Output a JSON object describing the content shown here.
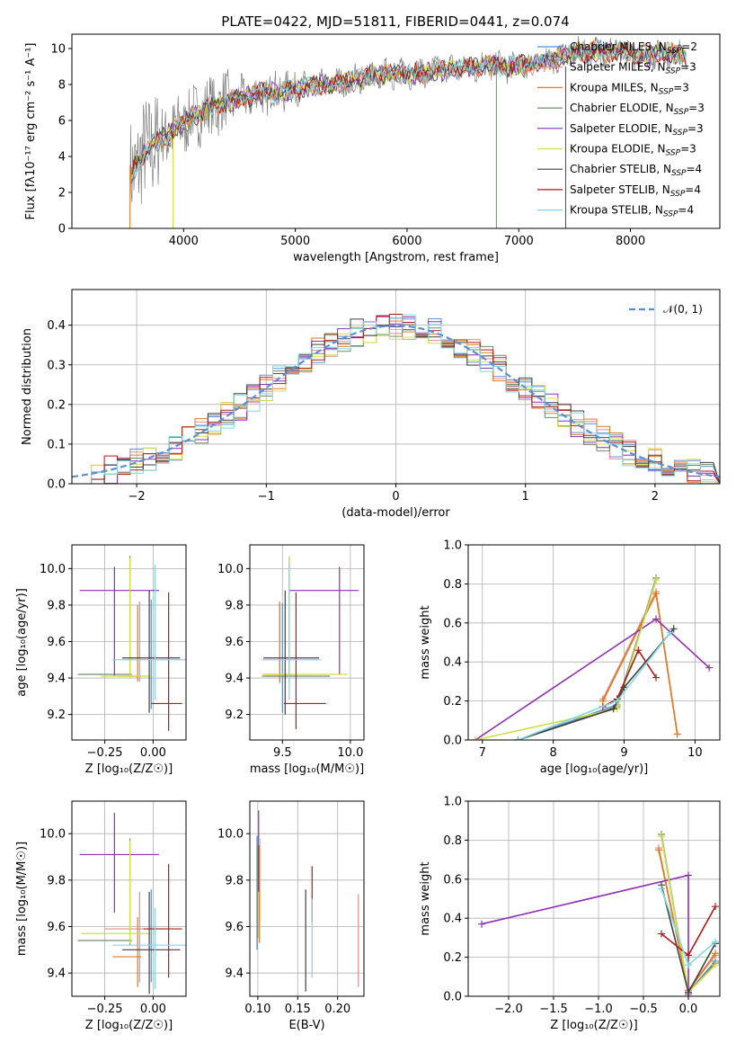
{
  "colors": {
    "chabrier_miles": "#5b8dd9",
    "salpeter_miles": "#e88a8a",
    "kroupa_miles": "#e07a20",
    "chabrier_elodie": "#6f8f6f",
    "salpeter_elodie": "#8e2fb5",
    "kroupa_elodie": "#d4dd40",
    "chabrier_stelib": "#404040",
    "salpeter_stelib": "#b01a1a",
    "kroupa_stelib": "#7fd8e0",
    "data": "#808080",
    "normal": "#5b8dd9",
    "grid": "#b0b0b0"
  },
  "chart_data": [
    {
      "type": "line",
      "title": "PLATE=0422, MJD=51811, FIBERID=0441, z=0.074",
      "xlabel": "wavelength [Angstrom, rest frame]",
      "ylabel": "Flux [fλ10⁻¹⁷ erg cm⁻² s⁻¹ A⁻¹]",
      "xlim": [
        3000,
        8800
      ],
      "ylim": [
        0,
        10.8
      ],
      "xticks": [
        "4000",
        "5000",
        "6000",
        "7000",
        "8000"
      ],
      "yticks": [
        "0",
        "2",
        "4",
        "6",
        "8",
        "10"
      ],
      "legend_position": "right",
      "series": [
        {
          "name": "Chabrier MILES, N",
          "sub": "SSP",
          "suffix": "=2"
        },
        {
          "name": "Salpeter MILES, N",
          "sub": "SSP",
          "suffix": "=3"
        },
        {
          "name": "Kroupa MILES, N",
          "sub": "SSP",
          "suffix": "=3"
        },
        {
          "name": "Chabrier ELODIE, N",
          "sub": "SSP",
          "suffix": "=3"
        },
        {
          "name": "Salpeter ELODIE, N",
          "sub": "SSP",
          "suffix": "=3"
        },
        {
          "name": "Kroupa ELODIE, N",
          "sub": "SSP",
          "suffix": "=3"
        },
        {
          "name": "Chabrier STELIB, N",
          "sub": "SSP",
          "suffix": "=4"
        },
        {
          "name": "Salpeter STELIB, N",
          "sub": "SSP",
          "suffix": "=4"
        },
        {
          "name": "Kroupa STELIB, N",
          "sub": "SSP",
          "suffix": "=4"
        }
      ],
      "continuum": {
        "x": [
          3520,
          3700,
          3900,
          4100,
          4300,
          4500,
          4700,
          4900,
          5100,
          5300,
          5500,
          5700,
          5900,
          6100,
          6300,
          6500,
          6700,
          6900,
          7100,
          7300,
          7500,
          7700,
          7900,
          8100,
          8300,
          8500
        ],
        "y": [
          3.0,
          4.6,
          5.4,
          6.3,
          6.9,
          7.2,
          7.5,
          7.6,
          7.9,
          8.0,
          8.2,
          8.5,
          8.6,
          8.6,
          8.8,
          8.9,
          9.1,
          9.0,
          9.1,
          9.4,
          9.8,
          9.8,
          9.9,
          9.6,
          9.8,
          9.6
        ]
      }
    },
    {
      "type": "line",
      "xlabel": "(data-model)/error",
      "ylabel": "Normed distribution",
      "xlim": [
        -2.5,
        2.5
      ],
      "ylim": [
        0,
        0.49
      ],
      "xticks": [
        "−2",
        "−1",
        "0",
        "1",
        "2"
      ],
      "yticks": [
        "0.0",
        "0.1",
        "0.2",
        "0.3",
        "0.4"
      ],
      "legend_position": "top-right",
      "legend": "𝒩(0, 1)",
      "hist_centers": [
        -2.4,
        -2.3,
        -2.2,
        -2.1,
        -2.0,
        -1.9,
        -1.8,
        -1.7,
        -1.6,
        -1.5,
        -1.4,
        -1.3,
        -1.2,
        -1.1,
        -1.0,
        -0.9,
        -0.8,
        -0.7,
        -0.6,
        -0.5,
        -0.4,
        -0.3,
        -0.2,
        -0.1,
        0.0,
        0.1,
        0.2,
        0.3,
        0.4,
        0.5,
        0.6,
        0.7,
        0.8,
        0.9,
        1.0,
        1.1,
        1.2,
        1.3,
        1.4,
        1.5,
        1.6,
        1.7,
        1.8,
        1.9,
        2.0,
        2.1,
        2.2,
        2.3,
        2.4
      ]
    },
    {
      "type": "scatter",
      "xlabel": "Z [log₁₀(Z/Z☉)]",
      "ylabel": "age  [log₁₀(age/yr)]",
      "xlim": [
        -0.42,
        0.17
      ],
      "ylim": [
        9.06,
        10.13
      ],
      "xticks": [
        "−0.25",
        "0.00"
      ],
      "yticks": [
        "9.2",
        "9.4",
        "9.6",
        "9.8",
        "10.0"
      ],
      "points": [
        {
          "x": -0.01,
          "y": 9.48,
          "xe": [
            -0.01,
            -0.01
          ],
          "ye": [
            9.23,
            9.83
          ]
        },
        {
          "x": -0.07,
          "y": 9.53,
          "xe": [
            -0.07,
            -0.07
          ],
          "ye": [
            9.38,
            9.82
          ]
        },
        {
          "x": -0.08,
          "y": 9.41,
          "xe": [
            -0.19,
            -0.06
          ],
          "ye": [
            9.38,
            9.8
          ]
        },
        {
          "x": -0.12,
          "y": 9.42,
          "xe": [
            -0.39,
            -0.11
          ],
          "ye": [
            9.4,
            10.07
          ]
        },
        {
          "x": -0.2,
          "y": 9.88,
          "xe": [
            -0.38,
            0.03
          ],
          "ye": [
            9.41,
            10.01
          ]
        },
        {
          "x": -0.12,
          "y": 9.41,
          "xe": [
            -0.27,
            -0.01
          ],
          "ye": [
            9.4,
            10.06
          ]
        },
        {
          "x": -0.02,
          "y": 9.51,
          "xe": [
            -0.16,
            0.14
          ],
          "ye": [
            9.21,
            9.88
          ]
        },
        {
          "x": 0.08,
          "y": 9.26,
          "xe": [
            -0.01,
            0.15
          ],
          "ye": [
            9.11,
            9.87
          ]
        },
        {
          "x": 0.01,
          "y": 9.5,
          "xe": [
            -0.21,
            0.17
          ],
          "ye": [
            9.28,
            10.02
          ]
        }
      ]
    },
    {
      "type": "scatter",
      "xlabel": "mass [log₁₀(M/M☉)]",
      "ylabel": "",
      "xlim": [
        9.26,
        10.1
      ],
      "ylim": [
        9.06,
        10.13
      ],
      "xticks": [
        "9.5",
        "10.0"
      ],
      "yticks": [
        "9.2",
        "9.4",
        "9.6",
        "9.8",
        "10.0"
      ],
      "points": [
        {
          "x": 9.5,
          "y": 9.49,
          "xe": [
            9.5,
            9.5
          ],
          "ye": [
            9.21,
            9.81
          ]
        },
        {
          "x": 9.48,
          "y": 9.41,
          "xe": [
            9.37,
            9.57
          ],
          "ye": [
            9.37,
            9.81
          ]
        },
        {
          "x": 9.48,
          "y": 9.42,
          "xe": [
            9.37,
            9.58
          ],
          "ye": [
            9.38,
            9.82
          ]
        },
        {
          "x": 9.55,
          "y": 9.41,
          "xe": [
            9.35,
            9.85
          ],
          "ye": [
            9.4,
            10.06
          ]
        },
        {
          "x": 9.92,
          "y": 9.88,
          "xe": [
            9.55,
            10.06
          ],
          "ye": [
            9.42,
            10.01
          ]
        },
        {
          "x": 9.55,
          "y": 9.42,
          "xe": [
            9.35,
            9.98
          ],
          "ye": [
            9.38,
            10.07
          ]
        },
        {
          "x": 9.52,
          "y": 9.51,
          "xe": [
            9.36,
            9.77
          ],
          "ye": [
            9.2,
            9.88
          ]
        },
        {
          "x": 9.6,
          "y": 9.26,
          "xe": [
            9.51,
            9.82
          ],
          "ye": [
            9.12,
            9.87
          ]
        },
        {
          "x": 9.55,
          "y": 9.5,
          "xe": [
            9.35,
            9.78
          ],
          "ye": [
            9.28,
            10.03
          ]
        }
      ]
    },
    {
      "type": "line",
      "xlabel": "age  [log₁₀(age/yr)]",
      "ylabel": "mass weight",
      "xlim": [
        6.8,
        10.35
      ],
      "ylim": [
        0,
        1.0
      ],
      "xticks": [
        "7",
        "8",
        "9",
        "10"
      ],
      "yticks": [
        "0.0",
        "0.2",
        "0.4",
        "0.6",
        "0.8",
        "1.0"
      ],
      "series": [
        {
          "x": [
            7.5,
            8.9,
            9.45
          ],
          "y": [
            0.0,
            0.18,
            0.82
          ]
        },
        {
          "x": [
            8.7,
            9.45,
            9.75
          ],
          "y": [
            0.21,
            0.76,
            0.03
          ]
        },
        {
          "x": [
            8.7,
            9.45,
            9.75
          ],
          "y": [
            0.2,
            0.75,
            0.03
          ]
        },
        {
          "x": [
            7.5,
            8.9,
            9.45
          ],
          "y": [
            0.0,
            0.17,
            0.83
          ]
        },
        {
          "x": [
            6.9,
            9.45,
            10.2
          ],
          "y": [
            0.0,
            0.62,
            0.37
          ]
        },
        {
          "x": [
            6.9,
            8.9,
            9.45
          ],
          "y": [
            0.0,
            0.16,
            0.82
          ]
        },
        {
          "x": [
            7.5,
            8.85,
            9.0,
            9.7
          ],
          "y": [
            0.0,
            0.16,
            0.27,
            0.57
          ]
        },
        {
          "x": [
            8.7,
            8.9,
            9.2,
            9.45
          ],
          "y": [
            0.17,
            0.21,
            0.46,
            0.32
          ]
        },
        {
          "x": [
            7.5,
            8.9,
            9.65
          ],
          "y": [
            0.0,
            0.2,
            0.55
          ]
        }
      ]
    },
    {
      "type": "scatter",
      "xlabel": "Z [log₁₀(Z/Z☉)]",
      "ylabel": "mass [log₁₀(M/M☉)]",
      "xlim": [
        -0.42,
        0.17
      ],
      "ylim": [
        9.3,
        10.14
      ],
      "xticks": [
        "−0.25",
        "0.00"
      ],
      "yticks": [
        "9.4",
        "9.6",
        "9.8",
        "10.0"
      ],
      "points": [
        {
          "x": -0.01,
          "y": 9.5,
          "xe": [
            -0.01,
            -0.01
          ],
          "ye": [
            9.36,
            9.76
          ]
        },
        {
          "x": -0.07,
          "y": 9.59,
          "xe": [
            -0.25,
            0.03
          ],
          "ye": [
            9.36,
            9.75
          ]
        },
        {
          "x": -0.08,
          "y": 9.47,
          "xe": [
            -0.21,
            -0.06
          ],
          "ye": [
            9.34,
            9.64
          ]
        },
        {
          "x": -0.12,
          "y": 9.54,
          "xe": [
            -0.39,
            -0.11
          ],
          "ye": [
            9.52,
            9.98
          ]
        },
        {
          "x": -0.2,
          "y": 9.91,
          "xe": [
            -0.38,
            0.03
          ],
          "ye": [
            9.66,
            10.09
          ]
        },
        {
          "x": -0.12,
          "y": 9.57,
          "xe": [
            -0.37,
            -0.01
          ],
          "ye": [
            9.53,
            9.97
          ]
        },
        {
          "x": -0.02,
          "y": 9.5,
          "xe": [
            -0.16,
            0.14
          ],
          "ye": [
            9.31,
            9.75
          ]
        },
        {
          "x": 0.08,
          "y": 9.59,
          "xe": [
            -0.05,
            0.15
          ],
          "ye": [
            9.38,
            9.87
          ]
        },
        {
          "x": 0.01,
          "y": 9.52,
          "xe": [
            -0.21,
            0.17
          ],
          "ye": [
            9.33,
            9.68
          ]
        }
      ]
    },
    {
      "type": "scatter",
      "xlabel": "E(B-V)",
      "ylabel": "",
      "xlim": [
        0.09,
        0.233
      ],
      "ylim": [
        9.3,
        10.14
      ],
      "xticks": [
        "0.10",
        "0.15",
        "0.20"
      ],
      "yticks": [
        "9.4",
        "9.6",
        "9.8",
        "10.0"
      ],
      "points": [
        {
          "x": 0.099,
          "ye": [
            9.5,
            9.99
          ]
        },
        {
          "x": 0.226,
          "ye": [
            9.34,
            9.74
          ]
        },
        {
          "x": 0.102,
          "ye": [
            9.53,
            9.95
          ]
        },
        {
          "x": 0.1,
          "ye": [
            9.55,
            9.95
          ]
        },
        {
          "x": 0.101,
          "ye": [
            9.75,
            10.1
          ]
        },
        {
          "x": 0.103,
          "ye": [
            9.62,
            9.98
          ]
        },
        {
          "x": 0.16,
          "ye": [
            9.32,
            9.76
          ]
        },
        {
          "x": 0.168,
          "ye": [
            9.62,
            9.86
          ]
        },
        {
          "x": 0.168,
          "ye": [
            9.38,
            9.72
          ]
        }
      ]
    },
    {
      "type": "line",
      "xlabel": "Z [log₁₀(Z/Z☉)]",
      "ylabel": "mass weight",
      "xlim": [
        -2.45,
        0.35
      ],
      "ylim": [
        0,
        1.0
      ],
      "xticks": [
        "−2.0",
        "−1.5",
        "−1.0",
        "−0.5",
        "0.0"
      ],
      "yticks": [
        "0.0",
        "0.2",
        "0.4",
        "0.6",
        "0.8",
        "1.0"
      ],
      "series": [
        {
          "x": [
            -0.3,
            0.0,
            0.3
          ],
          "y": [
            0.82,
            0.02,
            0.18
          ]
        },
        {
          "x": [
            -0.33,
            0.0,
            0.3
          ],
          "y": [
            0.76,
            0.03,
            0.21
          ]
        },
        {
          "x": [
            -0.33,
            0.0,
            0.3
          ],
          "y": [
            0.75,
            0.03,
            0.22
          ]
        },
        {
          "x": [
            -0.3,
            0.0,
            0.3
          ],
          "y": [
            0.83,
            0.02,
            0.17
          ]
        },
        {
          "x": [
            -2.3,
            0.0,
            0.0
          ],
          "y": [
            0.37,
            0.62,
            0.01
          ]
        },
        {
          "x": [
            -0.3,
            0.0,
            0.3
          ],
          "y": [
            0.82,
            0.02,
            0.16
          ]
        },
        {
          "x": [
            -0.3,
            0.0,
            0.3
          ],
          "y": [
            0.57,
            0.02,
            0.27
          ]
        },
        {
          "x": [
            -0.3,
            0.0,
            0.3
          ],
          "y": [
            0.32,
            0.21,
            0.46
          ]
        },
        {
          "x": [
            -0.3,
            0.0,
            0.3
          ],
          "y": [
            0.55,
            0.16,
            0.28
          ]
        }
      ]
    }
  ]
}
